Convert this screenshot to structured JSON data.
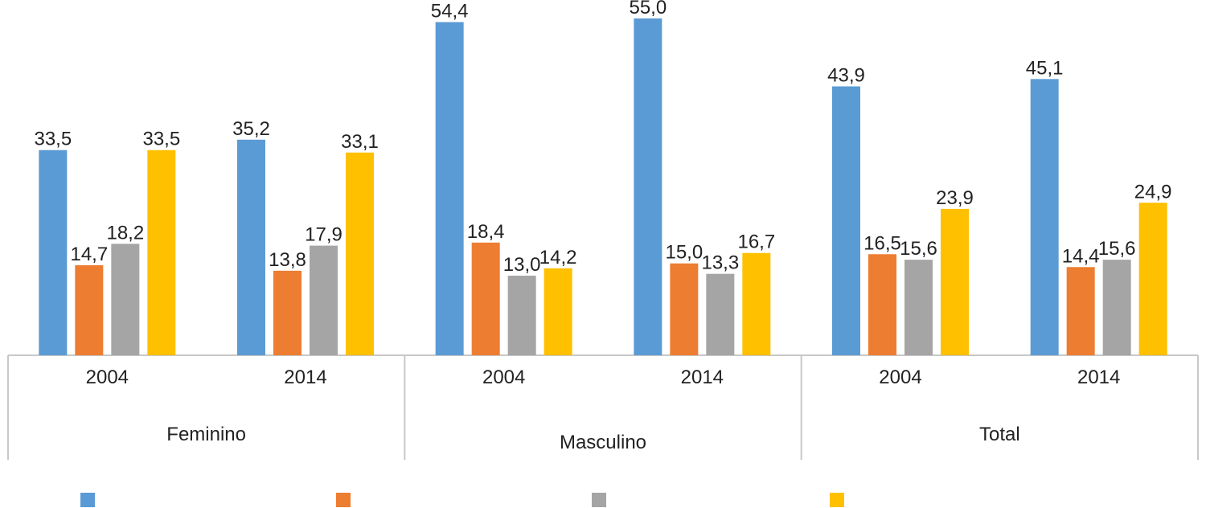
{
  "chart_data": {
    "type": "bar",
    "groups": [
      {
        "label": "Feminino",
        "years": [
          "2004",
          "2014"
        ]
      },
      {
        "label": "Masculino",
        "years": [
          "2004",
          "2014"
        ]
      },
      {
        "label": "Total",
        "years": [
          "2004",
          "2014"
        ]
      }
    ],
    "categories": [
      "Feminino 2004",
      "Feminino 2014",
      "Masculino 2004",
      "Masculino 2014",
      "Total 2004",
      "Total 2014"
    ],
    "series": [
      {
        "color": "#5B9BD5",
        "values": [
          33.5,
          35.2,
          54.4,
          55.0,
          43.9,
          45.1
        ],
        "labels": [
          "33,5",
          "35,2",
          "54,4",
          "55,0",
          "43,9",
          "45,1"
        ]
      },
      {
        "color": "#ED7D31",
        "values": [
          14.7,
          13.8,
          18.4,
          15.0,
          16.5,
          14.4
        ],
        "labels": [
          "14,7",
          "13,8",
          "18,4",
          "15,0",
          "16,5",
          "14,4"
        ]
      },
      {
        "color": "#A5A5A5",
        "values": [
          18.2,
          17.9,
          13.0,
          13.3,
          15.6,
          15.6
        ],
        "labels": [
          "18,2",
          "17,9",
          "13,0",
          "13,3",
          "15,6",
          "15,6"
        ]
      },
      {
        "color": "#FFC000",
        "values": [
          33.5,
          33.1,
          14.2,
          16.7,
          23.9,
          24.9
        ],
        "labels": [
          "33,5",
          "33,1",
          "14,2",
          "16,7",
          "23,9",
          "24,9"
        ]
      }
    ],
    "ylim": [
      0,
      60
    ],
    "grid": false,
    "legend": "bottom",
    "axis_color": "#C8C8C8",
    "text_color": "#222222"
  }
}
